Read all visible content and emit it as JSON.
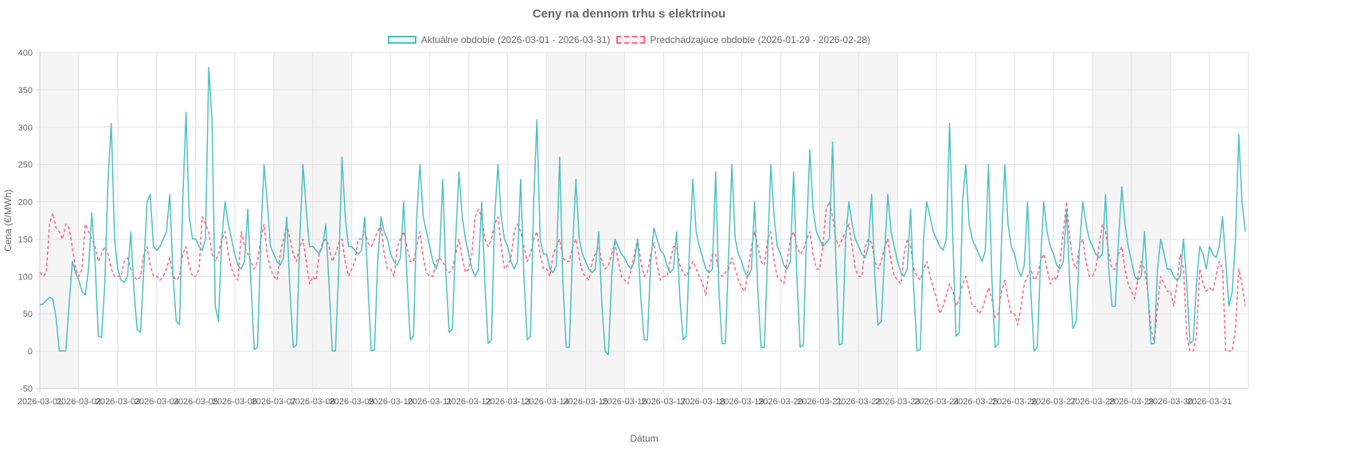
{
  "chart_data": {
    "type": "line",
    "title": "Ceny na dennom trhu s elektrinou",
    "xlabel": "Dátum",
    "ylabel": "Cena (€/MWh)",
    "ylim": [
      -50,
      400
    ],
    "yticks": [
      -50,
      0,
      50,
      100,
      150,
      200,
      250,
      300,
      350,
      400
    ],
    "grid": true,
    "legend_position": "top",
    "weekend_days_shaded": [
      1,
      7,
      8,
      14,
      15,
      21,
      22,
      28,
      29
    ],
    "x_ticks": [
      "2026-03-01",
      "2026-03-02",
      "2026-03-03",
      "2026-03-04",
      "2026-03-05",
      "2026-03-06",
      "2026-03-07",
      "2026-03-08",
      "2026-03-09",
      "2026-03-10",
      "2026-03-11",
      "2026-03-12",
      "2026-03-13",
      "2026-03-14",
      "2026-03-15",
      "2026-03-16",
      "2026-03-17",
      "2026-03-18",
      "2026-03-19",
      "2026-03-20",
      "2026-03-21",
      "2026-03-22",
      "2026-03-23",
      "2026-03-24",
      "2026-03-25",
      "2026-03-26",
      "2026-03-27",
      "2026-03-28",
      "2026-03-29",
      "2026-03-30",
      "2026-03-31"
    ],
    "sample_hours": [
      0,
      2,
      4,
      6,
      8,
      10,
      12,
      14,
      16,
      18,
      20,
      22
    ],
    "series": [
      {
        "name": "Aktuálne obdobie (2026-03-01 - 2026-03-31)",
        "color": "#4bc0c0",
        "dashed": false,
        "daily_values": [
          [
            62,
            63,
            68,
            72,
            70,
            45,
            0,
            0,
            0,
            60,
            120,
            105
          ],
          [
            95,
            80,
            75,
            110,
            185,
            120,
            20,
            18,
            90,
            230,
            305,
            150
          ],
          [
            110,
            95,
            92,
            100,
            160,
            80,
            28,
            25,
            110,
            200,
            210,
            140
          ],
          [
            135,
            140,
            150,
            160,
            210,
            100,
            40,
            35,
            200,
            320,
            180,
            150
          ],
          [
            150,
            140,
            135,
            150,
            380,
            310,
            60,
            40,
            150,
            200,
            170,
            150
          ],
          [
            130,
            115,
            110,
            120,
            190,
            90,
            2,
            5,
            150,
            250,
            200,
            140
          ],
          [
            130,
            120,
            115,
            125,
            180,
            80,
            5,
            8,
            150,
            250,
            190,
            140
          ],
          [
            140,
            135,
            130,
            140,
            170,
            90,
            0,
            0,
            110,
            260,
            180,
            140
          ],
          [
            140,
            135,
            130,
            135,
            180,
            90,
            0,
            2,
            120,
            180,
            160,
            150
          ],
          [
            130,
            120,
            115,
            125,
            200,
            100,
            15,
            20,
            180,
            250,
            180,
            160
          ],
          [
            140,
            120,
            110,
            125,
            230,
            100,
            25,
            30,
            150,
            240,
            180,
            150
          ],
          [
            130,
            110,
            100,
            110,
            200,
            90,
            10,
            15,
            180,
            250,
            180,
            150
          ],
          [
            140,
            120,
            110,
            120,
            230,
            100,
            15,
            20,
            200,
            310,
            150,
            130
          ],
          [
            130,
            110,
            105,
            115,
            260,
            90,
            5,
            5,
            140,
            230,
            150,
            130
          ],
          [
            120,
            110,
            105,
            110,
            160,
            60,
            0,
            -5,
            100,
            150,
            140,
            130
          ],
          [
            125,
            115,
            110,
            120,
            150,
            70,
            15,
            15,
            120,
            165,
            150,
            135
          ],
          [
            130,
            115,
            105,
            110,
            160,
            70,
            15,
            20,
            140,
            230,
            160,
            140
          ],
          [
            125,
            110,
            105,
            110,
            240,
            80,
            10,
            10,
            130,
            250,
            150,
            130
          ],
          [
            120,
            105,
            100,
            110,
            200,
            80,
            5,
            5,
            130,
            250,
            180,
            140
          ],
          [
            130,
            115,
            110,
            120,
            240,
            100,
            5,
            8,
            160,
            270,
            190,
            160
          ],
          [
            150,
            140,
            145,
            150,
            280,
            120,
            8,
            10,
            150,
            200,
            170,
            150
          ],
          [
            140,
            130,
            125,
            140,
            210,
            100,
            35,
            40,
            130,
            210,
            160,
            140
          ],
          [
            120,
            105,
            100,
            110,
            190,
            80,
            0,
            2,
            150,
            200,
            180,
            160
          ],
          [
            150,
            140,
            135,
            150,
            305,
            150,
            20,
            25,
            200,
            250,
            170,
            150
          ],
          [
            140,
            130,
            120,
            135,
            250,
            100,
            5,
            10,
            150,
            250,
            170,
            140
          ],
          [
            130,
            110,
            100,
            115,
            200,
            80,
            0,
            5,
            120,
            200,
            160,
            140
          ],
          [
            130,
            115,
            110,
            120,
            190,
            90,
            30,
            40,
            140,
            200,
            170,
            150
          ],
          [
            140,
            130,
            125,
            130,
            210,
            110,
            60,
            60,
            150,
            220,
            170,
            140
          ],
          [
            120,
            100,
            95,
            100,
            160,
            80,
            10,
            10,
            110,
            150,
            130,
            110
          ],
          [
            110,
            100,
            95,
            100,
            150,
            90,
            10,
            15,
            90,
            140,
            130,
            110
          ],
          [
            140,
            130,
            125,
            140,
            180,
            120,
            60,
            80,
            150,
            290,
            200,
            160
          ]
        ]
      },
      {
        "name": "Predchádzajúce obdobie (2026-01-29 - 2026-02-28)",
        "color": "#ff6384",
        "dashed": true,
        "daily_values": [
          [
            105,
            100,
            105,
            170,
            185,
            165,
            160,
            150,
            170,
            165,
            140,
            110
          ],
          [
            100,
            110,
            170,
            160,
            150,
            140,
            120,
            130,
            140,
            130,
            110,
            100
          ],
          [
            100,
            100,
            120,
            125,
            110,
            100,
            95,
            100,
            130,
            140,
            115,
            100
          ],
          [
            100,
            95,
            100,
            110,
            125,
            100,
            95,
            100,
            130,
            140,
            115,
            100
          ],
          [
            100,
            110,
            180,
            170,
            160,
            130,
            120,
            130,
            150,
            160,
            130,
            110
          ],
          [
            100,
            95,
            160,
            140,
            130,
            120,
            110,
            120,
            150,
            170,
            130,
            110
          ],
          [
            100,
            95,
            130,
            150,
            170,
            150,
            130,
            120,
            140,
            150,
            120,
            90
          ],
          [
            100,
            95,
            130,
            145,
            150,
            140,
            120,
            130,
            145,
            150,
            120,
            100
          ],
          [
            110,
            120,
            150,
            150,
            160,
            145,
            140,
            150,
            160,
            170,
            130,
            110
          ],
          [
            110,
            100,
            140,
            150,
            160,
            140,
            120,
            120,
            140,
            160,
            125,
            105
          ],
          [
            100,
            100,
            120,
            125,
            120,
            110,
            105,
            110,
            130,
            150,
            125,
            105
          ],
          [
            110,
            130,
            180,
            190,
            180,
            150,
            140,
            150,
            170,
            180,
            140,
            110
          ],
          [
            115,
            125,
            160,
            170,
            160,
            140,
            120,
            130,
            150,
            160,
            130,
            110
          ],
          [
            110,
            100,
            130,
            140,
            150,
            125,
            120,
            120,
            140,
            150,
            125,
            105
          ],
          [
            100,
            95,
            120,
            130,
            140,
            120,
            110,
            115,
            130,
            145,
            120,
            100
          ],
          [
            95,
            90,
            110,
            130,
            150,
            120,
            100,
            105,
            130,
            145,
            115,
            95
          ],
          [
            100,
            100,
            120,
            140,
            140,
            115,
            105,
            100,
            110,
            120,
            110,
            100
          ],
          [
            90,
            75,
            110,
            130,
            130,
            105,
            100,
            105,
            110,
            125,
            110,
            95
          ],
          [
            85,
            80,
            110,
            140,
            160,
            140,
            120,
            115,
            150,
            160,
            120,
            100
          ],
          [
            95,
            90,
            120,
            150,
            160,
            140,
            130,
            135,
            150,
            160,
            130,
            110
          ],
          [
            110,
            140,
            190,
            200,
            180,
            150,
            140,
            150,
            160,
            170,
            140,
            110
          ],
          [
            100,
            100,
            140,
            150,
            145,
            120,
            110,
            120,
            140,
            150,
            120,
            100
          ],
          [
            95,
            90,
            130,
            150,
            140,
            110,
            100,
            95,
            110,
            120,
            100,
            85
          ],
          [
            70,
            50,
            60,
            75,
            90,
            80,
            60,
            70,
            90,
            100,
            80,
            60
          ],
          [
            60,
            50,
            55,
            70,
            85,
            70,
            45,
            50,
            80,
            95,
            70,
            50
          ],
          [
            50,
            35,
            60,
            90,
            100,
            110,
            95,
            100,
            120,
            130,
            110,
            90
          ],
          [
            100,
            95,
            120,
            160,
            200,
            150,
            120,
            110,
            140,
            150,
            120,
            100
          ],
          [
            100,
            110,
            140,
            170,
            160,
            130,
            110,
            110,
            130,
            140,
            110,
            90
          ],
          [
            80,
            70,
            100,
            120,
            110,
            80,
            30,
            10,
            60,
            100,
            90,
            80
          ],
          [
            80,
            60,
            90,
            130,
            110,
            20,
            0,
            0,
            20,
            110,
            90,
            80
          ],
          [
            85,
            80,
            100,
            120,
            110,
            0,
            0,
            0,
            30,
            110,
            90,
            60
          ]
        ]
      }
    ]
  }
}
